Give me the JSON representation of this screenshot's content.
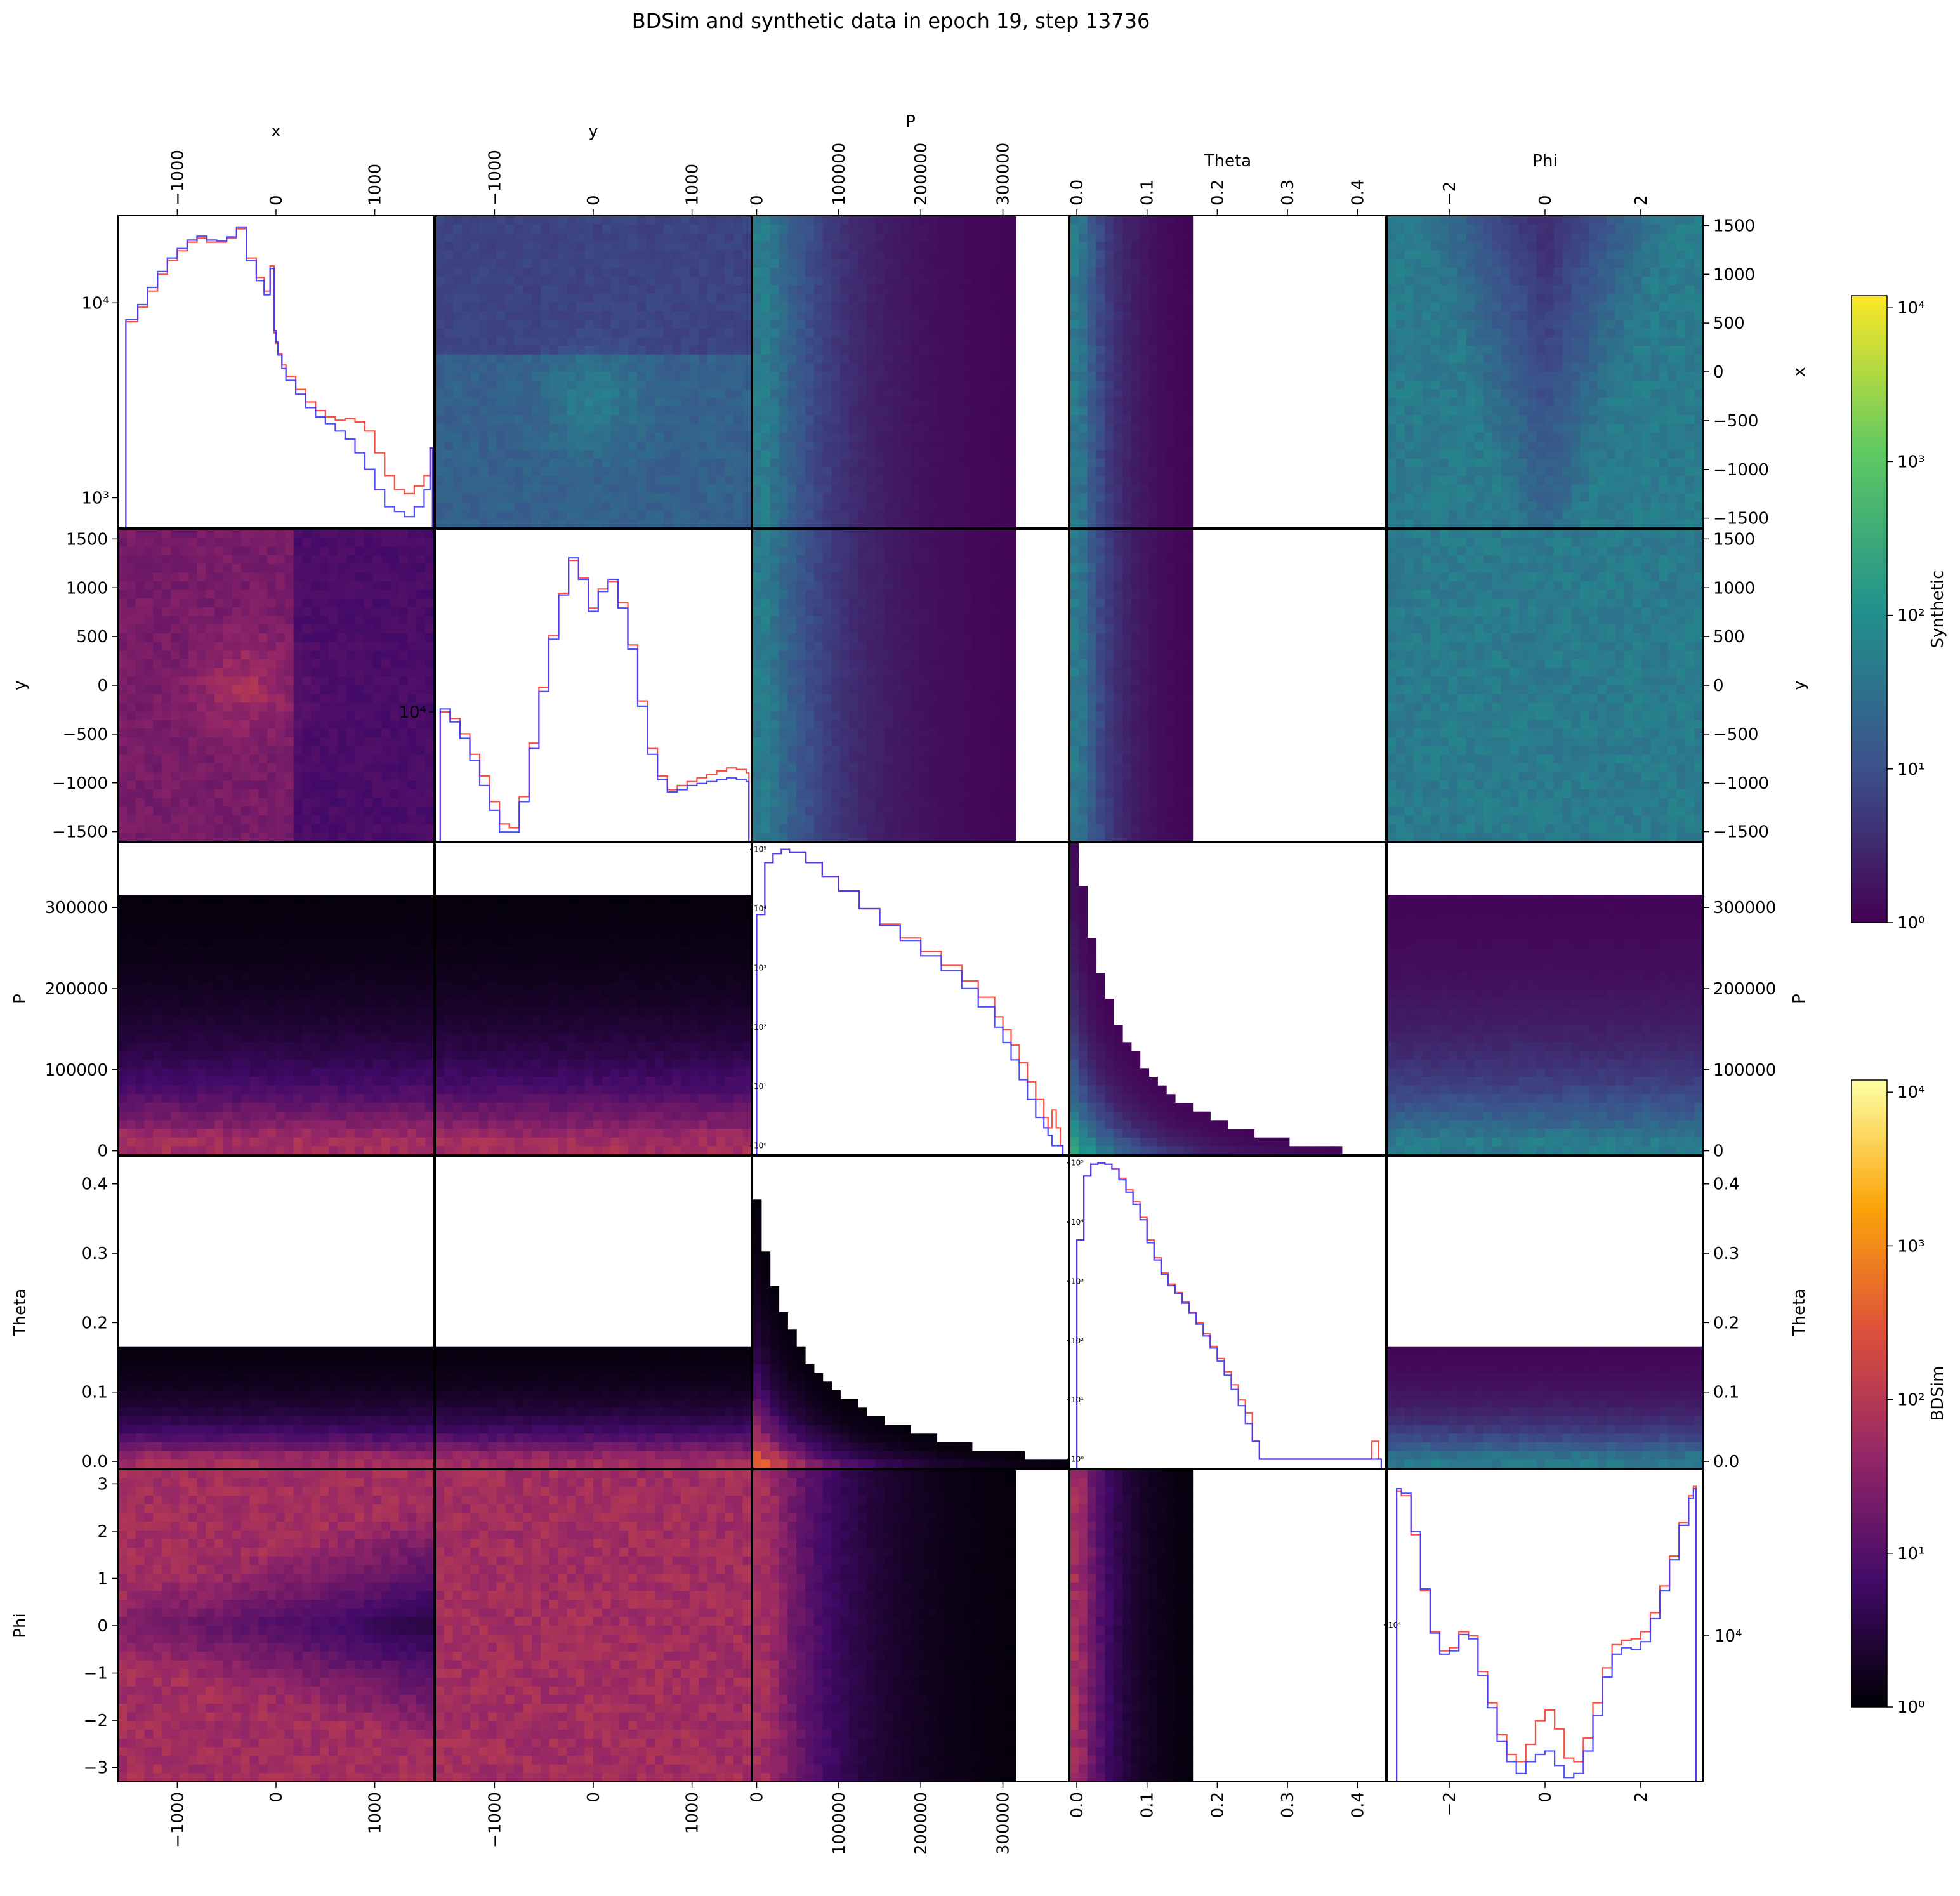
{
  "chart_data": {
    "type": "heatmap",
    "title": "BDSim and synthetic data in epoch 19, step 13736",
    "variables": [
      "x",
      "y",
      "P",
      "Theta",
      "Phi"
    ],
    "axes": {
      "x": {
        "range": [
          -1600,
          1600
        ],
        "ticks": [
          -1000,
          0,
          1000
        ],
        "tick_labels": [
          "−1000",
          "0",
          "1000"
        ],
        "row_ticks": [
          1500,
          1000,
          500,
          0,
          -500,
          -1000,
          -1500
        ],
        "row_tick_labels": [
          "1500",
          "1000",
          "500",
          "0",
          "−500",
          "−1000",
          "−1500"
        ]
      },
      "y": {
        "range": [
          -1600,
          1600
        ],
        "ticks": [
          -1000,
          0,
          1000
        ],
        "tick_labels": [
          "−1000",
          "0",
          "1000"
        ],
        "row_ticks": [
          1500,
          1000,
          500,
          0,
          -500,
          -1000,
          -1500
        ],
        "row_tick_labels": [
          "1500",
          "1000",
          "500",
          "0",
          "−500",
          "−1000",
          "−1500"
        ]
      },
      "P": {
        "range": [
          -5000,
          380000
        ],
        "ticks": [
          0,
          100000,
          200000,
          300000
        ],
        "tick_labels": [
          "0",
          "100000",
          "200000",
          "300000"
        ],
        "row_ticks": [
          300000,
          200000,
          100000,
          0
        ],
        "row_tick_labels": [
          "300000",
          "200000",
          "100000",
          "0"
        ]
      },
      "Theta": {
        "range": [
          -0.01,
          0.44
        ],
        "ticks": [
          0.0,
          0.1,
          0.2,
          0.3,
          0.4
        ],
        "tick_labels": [
          "0.0",
          "0.1",
          "0.2",
          "0.3",
          "0.4"
        ],
        "row_ticks": [
          0.4,
          0.3,
          0.2,
          0.1,
          0.0
        ],
        "row_tick_labels": [
          "0.4",
          "0.3",
          "0.2",
          "0.1",
          "0.0"
        ]
      },
      "Phi": {
        "range": [
          -3.3,
          3.3
        ],
        "ticks": [
          -2,
          0,
          2
        ],
        "tick_labels": [
          "−2",
          "0",
          "2"
        ],
        "row_ticks": [
          3,
          2,
          1,
          0,
          -1,
          -2,
          -3
        ],
        "row_tick_labels": [
          "3",
          "2",
          "1",
          "0",
          "−1",
          "−2",
          "−3"
        ]
      }
    },
    "upper_triangle": "Synthetic",
    "lower_triangle": "BDSim",
    "diagonal_series_colors": {
      "BDSim": "#ff3b30",
      "Synthetic": "#3b3bff"
    },
    "colorbars": [
      {
        "label": "Synthetic",
        "colormap": "viridis",
        "scale": "log",
        "range": [
          1,
          12000
        ],
        "tick_labels": [
          "10^4",
          "10^3",
          "10^2",
          "10^1",
          "10^0"
        ]
      },
      {
        "label": "BDSim",
        "colormap": "inferno",
        "scale": "log",
        "range": [
          1,
          12000
        ],
        "tick_labels": [
          "10^4",
          "10^3",
          "10^2",
          "10^1",
          "10^0"
        ]
      }
    ],
    "diagonal": [
      {
        "variable": "x",
        "yscale": "log",
        "ylim": [
          700,
          28000
        ],
        "y_tick_labels": [
          "10^4",
          "10^3"
        ],
        "x": [
          -1520,
          -1400,
          -1300,
          -1200,
          -1100,
          -1000,
          -900,
          -800,
          -700,
          -600,
          -500,
          -400,
          -300,
          -200,
          -120,
          -60,
          -20,
          0,
          20,
          60,
          100,
          200,
          300,
          400,
          500,
          600,
          700,
          800,
          900,
          1000,
          1100,
          1200,
          1300,
          1400,
          1500,
          1560
        ],
        "series": [
          {
            "name": "BDSim",
            "values": [
              8000,
              9500,
              11500,
              14000,
              16500,
              18500,
              20500,
              21500,
              20500,
              20500,
              21500,
              24000,
              17000,
              13500,
              11500,
              15500,
              7000,
              6200,
              5500,
              4800,
              4200,
              3600,
              3100,
              2800,
              2600,
              2500,
              2550,
              2450,
              2200,
              1700,
              1300,
              1100,
              1050,
              1150,
              1300,
              1800
            ]
          },
          {
            "name": "Synthetic",
            "values": [
              8200,
              9800,
              12000,
              14500,
              17000,
              19000,
              21000,
              22000,
              21000,
              20800,
              21800,
              24500,
              16500,
              13000,
              11000,
              15000,
              7200,
              6300,
              5400,
              4600,
              4000,
              3400,
              2900,
              2600,
              2400,
              2200,
              2000,
              1700,
              1400,
              1100,
              900,
              850,
              800,
              900,
              1100,
              1800
            ]
          }
        ]
      },
      {
        "variable": "y",
        "yscale": "log",
        "ylim": [
          1200,
          200000
        ],
        "y_tick_labels": [
          "10^4"
        ],
        "x": [
          -1550,
          -1450,
          -1350,
          -1250,
          -1150,
          -1050,
          -950,
          -850,
          -750,
          -650,
          -550,
          -450,
          -350,
          -250,
          -150,
          -50,
          50,
          150,
          250,
          350,
          450,
          550,
          650,
          750,
          850,
          950,
          1050,
          1150,
          1250,
          1350,
          1450,
          1550
        ],
        "series": [
          {
            "name": "BDSim",
            "values": [
              10000,
              9000,
              7000,
              5000,
              3500,
              2300,
              1600,
              1500,
              2500,
              6000,
              15000,
              35000,
              70000,
              120000,
              90000,
              55000,
              75000,
              85000,
              60000,
              30000,
              12000,
              5500,
              3500,
              2800,
              3000,
              3200,
              3400,
              3600,
              3800,
              4000,
              3900,
              3700
            ]
          },
          {
            "name": "Synthetic",
            "values": [
              10500,
              8500,
              6500,
              4500,
              3000,
              2000,
              1400,
              1400,
              2300,
              5500,
              14000,
              33000,
              68000,
              125000,
              88000,
              52000,
              72000,
              88000,
              55000,
              28000,
              11000,
              5000,
              3300,
              2700,
              2800,
              3000,
              3100,
              3200,
              3300,
              3400,
              3300,
              3200
            ]
          }
        ]
      },
      {
        "variable": "P",
        "yscale": "log",
        "ylim": [
          0.7,
          130000
        ],
        "y_tick_labels": [
          "10^5",
          "10^4",
          "10^3",
          "10^2",
          "10^1",
          "10^0"
        ],
        "x": [
          0,
          10000,
          20000,
          30000,
          40000,
          60000,
          80000,
          100000,
          125000,
          150000,
          175000,
          200000,
          225000,
          250000,
          270000,
          290000,
          300000,
          310000,
          320000,
          330000,
          340000,
          350000,
          355000,
          360000,
          365000,
          370000
        ],
        "series": [
          {
            "name": "BDSim",
            "values": [
              8000,
              60000,
              85000,
              100000,
              90000,
              60000,
              35000,
              20000,
              10000,
              5500,
              3200,
              1900,
              1100,
              600,
              320,
              150,
              90,
              50,
              25,
              12,
              6,
              3,
              2,
              4,
              2,
              1
            ]
          },
          {
            "name": "Synthetic",
            "values": [
              8000,
              60000,
              85000,
              100000,
              90000,
              60000,
              35000,
              20000,
              10000,
              5200,
              2900,
              1600,
              900,
              450,
              220,
              100,
              55,
              28,
              13,
              6,
              3,
              2,
              1.5,
              1,
              1,
              1
            ]
          }
        ]
      },
      {
        "variable": "Theta",
        "yscale": "log",
        "ylim": [
          0.7,
          130000
        ],
        "y_tick_labels": [
          "10^5",
          "10^4",
          "10^3",
          "10^2",
          "10^1",
          "10^0"
        ],
        "x": [
          0,
          0.01,
          0.02,
          0.03,
          0.04,
          0.05,
          0.06,
          0.07,
          0.08,
          0.09,
          0.1,
          0.11,
          0.12,
          0.13,
          0.14,
          0.15,
          0.16,
          0.17,
          0.18,
          0.19,
          0.2,
          0.21,
          0.22,
          0.23,
          0.24,
          0.25,
          0.26,
          0.28,
          0.3,
          0.32,
          0.35,
          0.4,
          0.42,
          0.43
        ],
        "series": [
          {
            "name": "BDSim",
            "values": [
              5000,
              60000,
              95000,
              100000,
              95000,
              80000,
              55000,
              35000,
              22000,
              12000,
              5000,
              2500,
              1400,
              900,
              650,
              450,
              300,
              200,
              130,
              80,
              50,
              30,
              18,
              10,
              6,
              2,
              1,
              1,
              1,
              1,
              1,
              1,
              2,
              1
            ]
          },
          {
            "name": "Synthetic",
            "values": [
              5000,
              60000,
              95000,
              100000,
              95000,
              78000,
              52000,
              32000,
              20000,
              11000,
              4500,
              2300,
              1300,
              850,
              620,
              430,
              290,
              190,
              120,
              75,
              45,
              26,
              15,
              8,
              4,
              2,
              1,
              1,
              1,
              1,
              1,
              1,
              1,
              1
            ]
          }
        ]
      },
      {
        "variable": "Phi",
        "yscale": "log",
        "ylim": [
          3000,
          33000
        ],
        "y_tick_labels": [
          "10^4"
        ],
        "x": [
          -3.1,
          -3.0,
          -2.8,
          -2.6,
          -2.4,
          -2.2,
          -2.0,
          -1.8,
          -1.6,
          -1.4,
          -1.2,
          -1.0,
          -0.8,
          -0.6,
          -0.4,
          -0.2,
          0.0,
          0.2,
          0.4,
          0.6,
          0.8,
          1.0,
          1.2,
          1.4,
          1.6,
          1.8,
          2.0,
          2.2,
          2.4,
          2.6,
          2.8,
          3.0,
          3.1
        ],
        "series": [
          {
            "name": "BDSim",
            "values": [
              28000,
              27000,
              20000,
              13000,
              9500,
              8200,
              8400,
              9500,
              9200,
              7000,
              5500,
              4300,
              3700,
              3500,
              4000,
              4800,
              5200,
              4500,
              3600,
              3500,
              4200,
              5500,
              7200,
              8600,
              8900,
              9000,
              9500,
              11000,
              13500,
              17000,
              22000,
              27000,
              29000
            ]
          },
          {
            "name": "Synthetic",
            "values": [
              28500,
              27500,
              20500,
              13200,
              9400,
              8000,
              8200,
              9300,
              9000,
              6800,
              5300,
              4100,
              3500,
              3200,
              3500,
              3700,
              3800,
              3400,
              3100,
              3200,
              3800,
              5000,
              6700,
              8000,
              8400,
              8300,
              8800,
              10500,
              13000,
              16500,
              21500,
              26500,
              28500
            ]
          }
        ]
      }
    ]
  }
}
